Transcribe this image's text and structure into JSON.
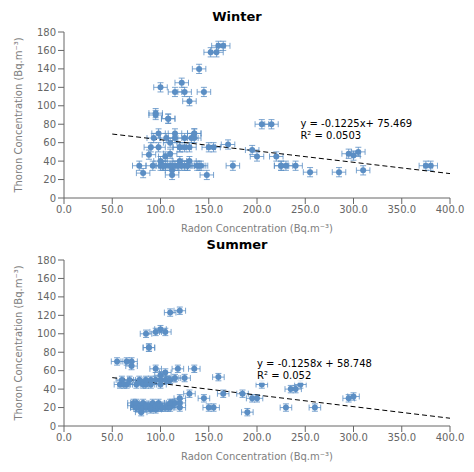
{
  "chart_data": [
    {
      "type": "scatter",
      "title": "Winter",
      "xlabel": "Radon Concentration (Bq.m⁻³)",
      "ylabel": "Thoron Concentration (Bq.m⁻³)",
      "xlim": [
        0,
        400
      ],
      "ylim": [
        0,
        180
      ],
      "xticks": [
        {
          "value": 0,
          "label": "0.0"
        },
        {
          "value": 50,
          "label": "50.0"
        },
        {
          "value": 100,
          "label": "100.0"
        },
        {
          "value": 150,
          "label": "150.0"
        },
        {
          "value": 200,
          "label": "200.0"
        },
        {
          "value": 250,
          "label": "250.0"
        },
        {
          "value": 300,
          "label": "300.0"
        },
        {
          "value": 350,
          "label": "350.0"
        },
        {
          "value": 400,
          "label": "400.0"
        }
      ],
      "yticks": [
        0,
        20,
        40,
        60,
        80,
        100,
        120,
        140,
        160,
        180
      ],
      "grid": false,
      "series": [
        {
          "type": "scatter",
          "color": "#5b8ec4",
          "marker": "circle",
          "x": [
            78,
            82,
            88,
            90,
            92,
            93,
            95,
            95,
            98,
            98,
            100,
            100,
            100,
            102,
            103,
            105,
            105,
            106,
            108,
            108,
            110,
            110,
            110,
            112,
            112,
            112,
            115,
            115,
            115,
            115,
            118,
            120,
            120,
            120,
            122,
            122,
            125,
            125,
            125,
            125,
            128,
            128,
            130,
            130,
            130,
            132,
            135,
            135,
            135,
            138,
            140,
            140,
            142,
            145,
            148,
            150,
            152,
            155,
            158,
            160,
            165,
            170,
            175,
            195,
            200,
            205,
            215,
            220,
            225,
            225,
            230,
            240,
            255,
            285,
            295,
            300,
            305,
            310,
            375,
            380
          ],
          "values": [
            35,
            27,
            47,
            55,
            35,
            65,
            92,
            90,
            55,
            70,
            120,
            35,
            40,
            35,
            35,
            35,
            45,
            65,
            86,
            86,
            35,
            48,
            60,
            25,
            30,
            35,
            65,
            70,
            115,
            35,
            35,
            55,
            55,
            40,
            125,
            35,
            55,
            65,
            115,
            35,
            35,
            35,
            40,
            55,
            105,
            65,
            65,
            70,
            70,
            35,
            140,
            35,
            35,
            115,
            25,
            55,
            158,
            55,
            158,
            165,
            165,
            58,
            35,
            52,
            45,
            80,
            80,
            45,
            35,
            35,
            35,
            35,
            28,
            28,
            48,
            46,
            50,
            30,
            35,
            35
          ],
          "xerr": 7,
          "yerr": 5
        },
        {
          "type": "line",
          "color": "#000000",
          "line_style": "dashed",
          "x": [
            50,
            400
          ],
          "values": [
            69.344,
            26.469
          ]
        }
      ],
      "annotations": [
        {
          "text": "y = -0.1225x+ 75.469\nR² = 0.0503",
          "x": 245,
          "y": 88
        }
      ]
    },
    {
      "type": "scatter",
      "title": "Summer",
      "xlabel": "Radon Concentration (Bq.m⁻³)",
      "ylabel": "Thoron Concentration (Bq.m⁻³)",
      "xlim": [
        0,
        400
      ],
      "ylim": [
        0,
        180
      ],
      "xticks": [
        {
          "value": 0,
          "label": "0.0"
        },
        {
          "value": 50,
          "label": "50.0"
        },
        {
          "value": 100,
          "label": "100.0"
        },
        {
          "value": 150,
          "label": "150.0"
        },
        {
          "value": 200,
          "label": "200.0"
        },
        {
          "value": 250,
          "label": "250.0"
        },
        {
          "value": 300,
          "label": "300.0"
        },
        {
          "value": 350,
          "label": "350.0"
        },
        {
          "value": 400,
          "label": "400.0"
        }
      ],
      "yticks": [
        0,
        20,
        40,
        60,
        80,
        100,
        120,
        140,
        160,
        180
      ],
      "grid": false,
      "series": [
        {
          "type": "scatter",
          "color": "#5b8ec4",
          "marker": "circle",
          "x": [
            55,
            58,
            60,
            62,
            65,
            65,
            68,
            70,
            70,
            72,
            72,
            75,
            75,
            75,
            75,
            78,
            78,
            80,
            80,
            80,
            80,
            82,
            82,
            82,
            85,
            85,
            85,
            85,
            85,
            88,
            88,
            90,
            90,
            90,
            90,
            90,
            92,
            92,
            95,
            95,
            95,
            95,
            95,
            95,
            98,
            98,
            100,
            100,
            100,
            100,
            100,
            100,
            102,
            105,
            105,
            105,
            105,
            108,
            108,
            108,
            110,
            110,
            110,
            110,
            112,
            115,
            115,
            118,
            120,
            120,
            120,
            120,
            125,
            130,
            135,
            145,
            150,
            155,
            160,
            165,
            185,
            190,
            195,
            200,
            205,
            230,
            235,
            240,
            245,
            260,
            295,
            300
          ],
          "values": [
            70,
            45,
            50,
            45,
            45,
            70,
            50,
            65,
            70,
            22,
            25,
            20,
            20,
            25,
            45,
            20,
            50,
            15,
            18,
            22,
            48,
            20,
            25,
            45,
            20,
            22,
            45,
            50,
            100,
            85,
            85,
            18,
            20,
            22,
            45,
            50,
            20,
            25,
            18,
            20,
            22,
            50,
            62,
            102,
            20,
            25,
            20,
            22,
            45,
            50,
            55,
            105,
            20,
            20,
            50,
            58,
            102,
            20,
            22,
            50,
            20,
            25,
            50,
            123,
            25,
            25,
            52,
            62,
            20,
            25,
            30,
            125,
            52,
            35,
            62,
            30,
            20,
            20,
            53,
            35,
            35,
            15,
            30,
            30,
            45,
            20,
            40,
            40,
            45,
            20,
            30,
            32
          ],
          "xerr": 6,
          "yerr": 4
        },
        {
          "type": "line",
          "color": "#000000",
          "line_style": "dashed",
          "x": [
            50,
            400
          ],
          "values": [
            52.458,
            8.428
          ]
        }
      ],
      "annotations": [
        {
          "text": "y = -0.1258x + 58.748\nR² = 0.052",
          "x": 200,
          "y": 75
        }
      ]
    }
  ]
}
